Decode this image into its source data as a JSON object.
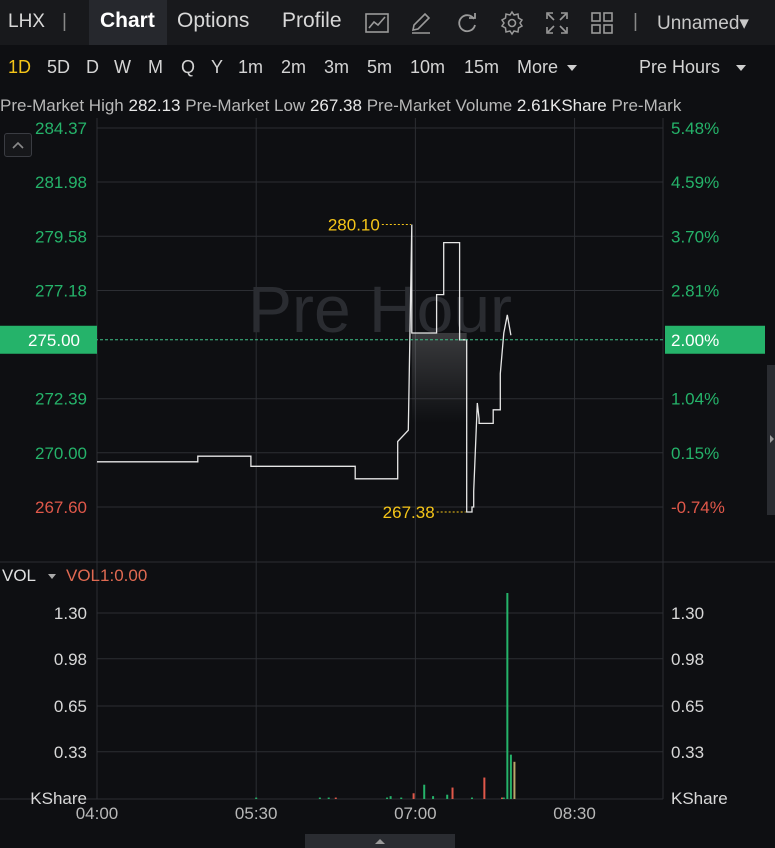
{
  "toolbar": {
    "symbol": "LHX",
    "separator": "|",
    "tabs": [
      {
        "label": "Chart",
        "active": true
      },
      {
        "label": "Options",
        "active": false
      },
      {
        "label": "Profile",
        "active": false
      }
    ],
    "icons": [
      "indicator-chart-icon",
      "draw-pen-icon",
      "refresh-icon",
      "settings-gear-icon",
      "fullscreen-icon",
      "layout-grid-icon"
    ],
    "layout_select": "Unnamed▾"
  },
  "periods": {
    "items": [
      "1D",
      "5D",
      "D",
      "W",
      "M",
      "Q",
      "Y",
      "1m",
      "2m",
      "3m",
      "5m",
      "10m",
      "15m",
      "More"
    ],
    "active": "1D",
    "session": "Pre Hours"
  },
  "info": {
    "high_label": "Pre-Market High",
    "high_value": "282.13",
    "low_label": "Pre-Market Low",
    "low_value": "267.38",
    "volume_label": "Pre-Market Volume",
    "volume_value": "2.61KShare",
    "overflow_label": "Pre-Mark"
  },
  "colors": {
    "background": "#0e0f12",
    "grid": "#2c2e33",
    "price_line": "#e6e6e6",
    "up": "#25b36a",
    "down": "#e0584a",
    "annotation": "#f5c518",
    "current_price_badge": "#25b36a"
  },
  "chart_data": [
    {
      "type": "line",
      "watermark": "Pre Hour",
      "x_ticks": [
        "04:00",
        "05:30",
        "07:00",
        "08:30"
      ],
      "x_range_minutes": [
        240,
        560
      ],
      "ylim": [
        266.3,
        284.37
      ],
      "y_ticks": [
        "284.37",
        "281.98",
        "279.58",
        "277.18",
        "275.00",
        "272.39",
        "270.00",
        "267.60"
      ],
      "y_tick_values": [
        284.37,
        281.98,
        279.58,
        277.18,
        275.0,
        272.39,
        270.0,
        267.6
      ],
      "right_ticks": [
        "5.48%",
        "4.59%",
        "3.70%",
        "2.81%",
        "2.00%",
        "1.04%",
        "0.15%",
        "-0.74%"
      ],
      "reference_price": 269.6,
      "current_price": 275.0,
      "current_price_label": "275.00",
      "current_pct_label": "2.00%",
      "high_annotation": {
        "label": "280.10",
        "time_minutes": 418,
        "value": 280.1
      },
      "low_annotation": {
        "label": "267.38",
        "time_minutes": 449,
        "value": 267.38
      },
      "series": [
        {
          "time_minutes": [
            240,
            297,
            297,
            327,
            327,
            386,
            386,
            410,
            410,
            416,
            418,
            418,
            432,
            432,
            436,
            436,
            445,
            445,
            449,
            449,
            452,
            452,
            453,
            453,
            455,
            456,
            456,
            464,
            464,
            468,
            468,
            470,
            472,
            474
          ],
          "values": [
            269.6,
            269.6,
            269.85,
            269.85,
            269.4,
            269.4,
            268.85,
            268.85,
            270.5,
            271.0,
            280.1,
            275.3,
            275.3,
            277.0,
            277.0,
            279.3,
            279.3,
            275.0,
            275.0,
            267.38,
            267.38,
            267.6,
            267.6,
            268.3,
            272.2,
            271.5,
            271.3,
            271.3,
            271.9,
            271.9,
            273.5,
            275.3,
            276.1,
            275.2
          ]
        }
      ]
    },
    {
      "type": "bar",
      "title": "VOL",
      "indicator": "VOL1:0.00",
      "unit": "KShare",
      "ylim": [
        0,
        1.44
      ],
      "y_ticks": [
        "1.30",
        "0.98",
        "0.65",
        "0.33"
      ],
      "y_tick_values": [
        1.3,
        0.98,
        0.65,
        0.33
      ],
      "x_ticks": [
        "04:00",
        "05:30",
        "07:00",
        "08:30"
      ],
      "series": [
        {
          "name": "volume",
          "time_minutes": [
            330,
            366,
            371,
            375,
            404,
            406,
            412,
            419,
            425,
            430,
            438,
            441,
            452,
            459,
            469,
            470,
            472,
            474,
            476
          ],
          "values": [
            0.01,
            0.01,
            0.01,
            0.01,
            0.01,
            0.02,
            0.01,
            0.04,
            0.1,
            0.02,
            0.03,
            0.08,
            0.01,
            0.15,
            0.01,
            0.01,
            1.44,
            0.31,
            0.26
          ],
          "direction": [
            "up",
            "up",
            "up",
            "down",
            "up",
            "up",
            "up",
            "down",
            "up",
            "up",
            "up",
            "down",
            "up",
            "down",
            "down",
            "up",
            "up",
            "up",
            "mixed"
          ]
        }
      ]
    }
  ]
}
